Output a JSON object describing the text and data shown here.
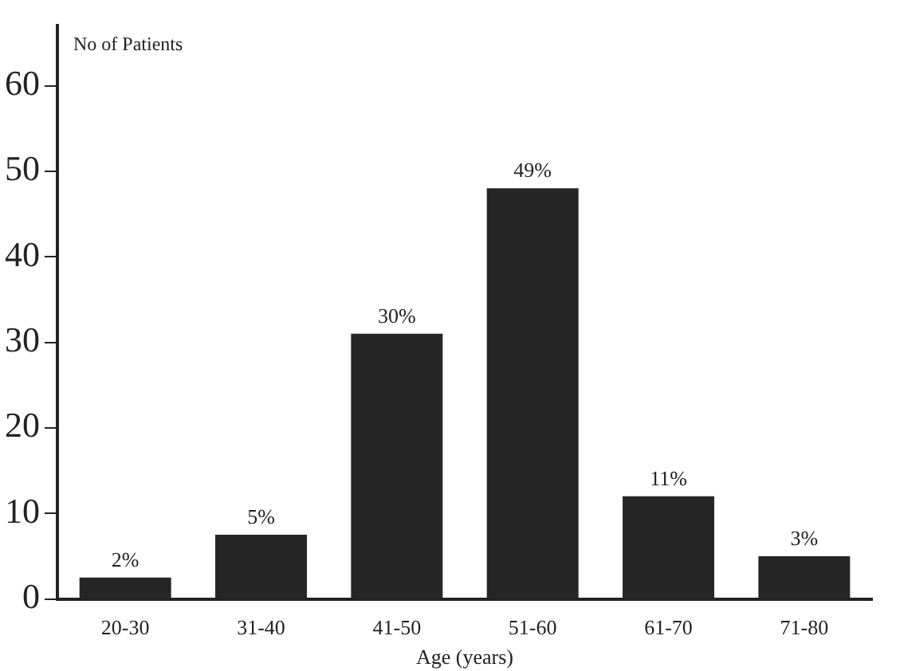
{
  "chart_data": {
    "type": "bar",
    "xlabel": "Age (years)",
    "ylabel": "No of Patients",
    "categories": [
      "20-30",
      "31-40",
      "41-50",
      "51-60",
      "61-70",
      "71-80"
    ],
    "values": [
      2.5,
      7.5,
      31,
      48,
      12,
      5
    ],
    "annotations": [
      {
        "text": "2%",
        "x": "20-30",
        "y": 2.5
      },
      {
        "text": "5%",
        "x": "31-40",
        "y": 7.5
      },
      {
        "text": "30%",
        "x": "41-50",
        "y": 31
      },
      {
        "text": "49%",
        "x": "51-60",
        "y": 48
      },
      {
        "text": "11%",
        "x": "61-70",
        "y": 12
      },
      {
        "text": "3%",
        "x": "71-80",
        "y": 5
      }
    ],
    "color": "#262626",
    "ylim": [
      0,
      67
    ],
    "yticks": [
      0,
      10,
      20,
      30,
      40,
      50,
      60
    ],
    "grid": false
  }
}
